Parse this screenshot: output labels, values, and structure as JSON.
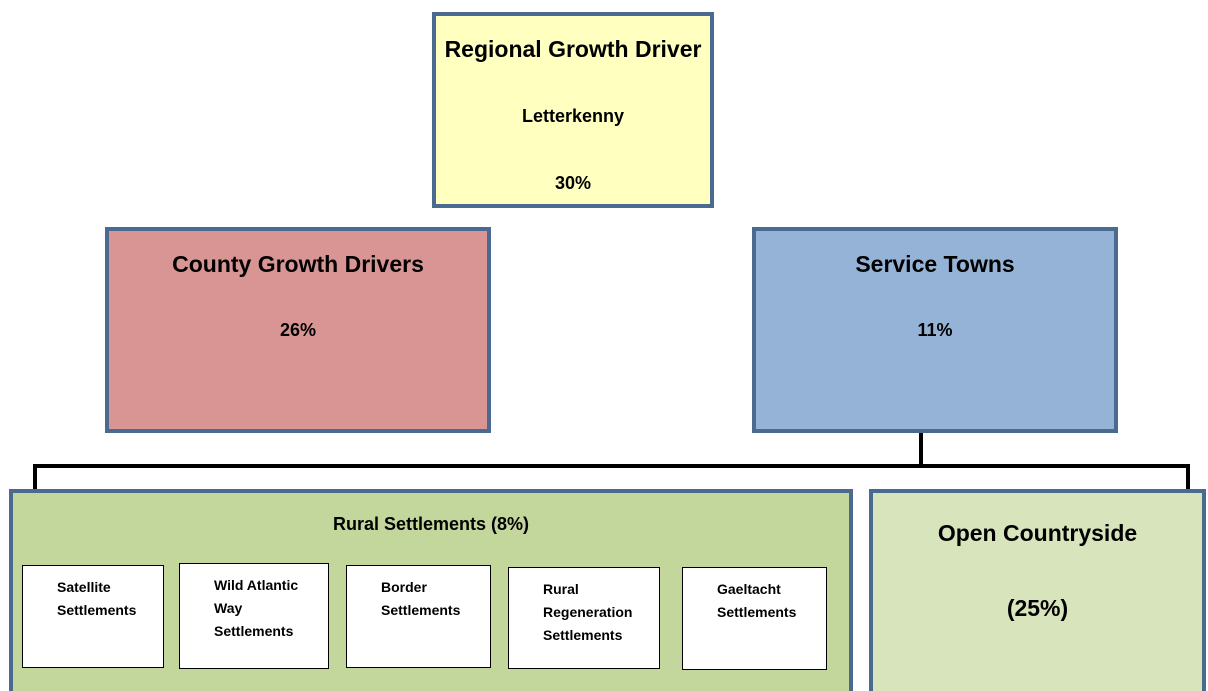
{
  "top": {
    "title": "Regional Growth Driver",
    "subtitle": "Letterkenny",
    "share": "30%"
  },
  "left": {
    "title": "County Growth Drivers",
    "share": "26%"
  },
  "right": {
    "title": "Service Towns",
    "share": "11%"
  },
  "rural": {
    "title": "Rural Settlements (8%)",
    "items": [
      {
        "lines": [
          "Satellite",
          "Settlements"
        ]
      },
      {
        "lines": [
          "Wild Atlantic",
          "Way",
          "Settlements"
        ]
      },
      {
        "lines": [
          "Border",
          "Settlements"
        ]
      },
      {
        "lines": [
          "Rural",
          "Regeneration",
          "Settlements"
        ]
      },
      {
        "lines": [
          "Gaeltacht",
          "Settlements"
        ]
      }
    ]
  },
  "countryside": {
    "title": "Open Countryside",
    "share": "(25%)"
  }
}
